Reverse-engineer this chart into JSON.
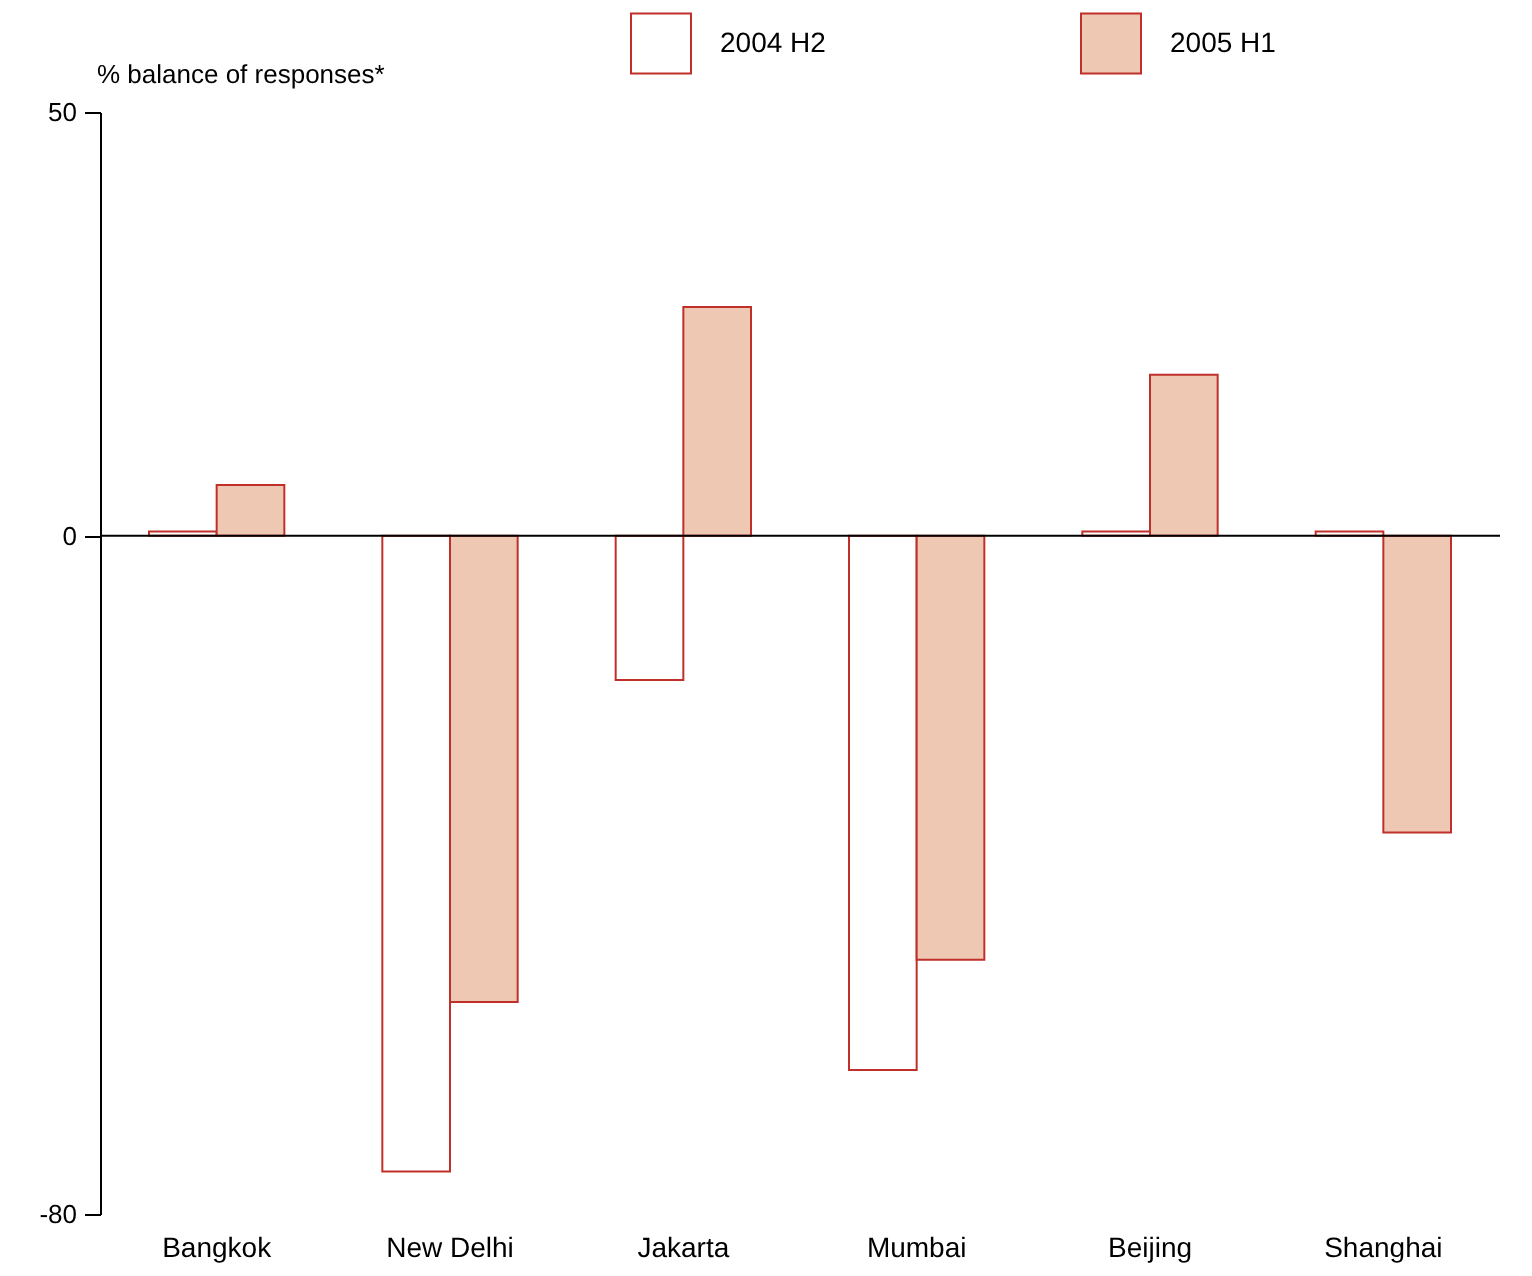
{
  "chart_data": {
    "type": "bar",
    "ylabel": "% balance of responses*",
    "categories": [
      "Bangkok",
      "New Delhi",
      "Jakarta",
      "Mumbai",
      "Beijing",
      "Shanghai"
    ],
    "series": [
      {
        "name": "2004 H2",
        "color": "#ffffff",
        "values": [
          0.5,
          -75,
          -17,
          -63,
          0.5,
          0.5
        ]
      },
      {
        "name": "2005 H1",
        "color": "#efc8b3",
        "values": [
          6,
          -55,
          27,
          -50,
          19,
          -35
        ]
      }
    ],
    "ylim": [
      -80,
      50
    ],
    "yticks": [
      -80,
      0,
      50
    ],
    "grid": false,
    "legend": "top",
    "ref_lines": [
      {
        "axis": "y",
        "value": 0
      }
    ]
  }
}
